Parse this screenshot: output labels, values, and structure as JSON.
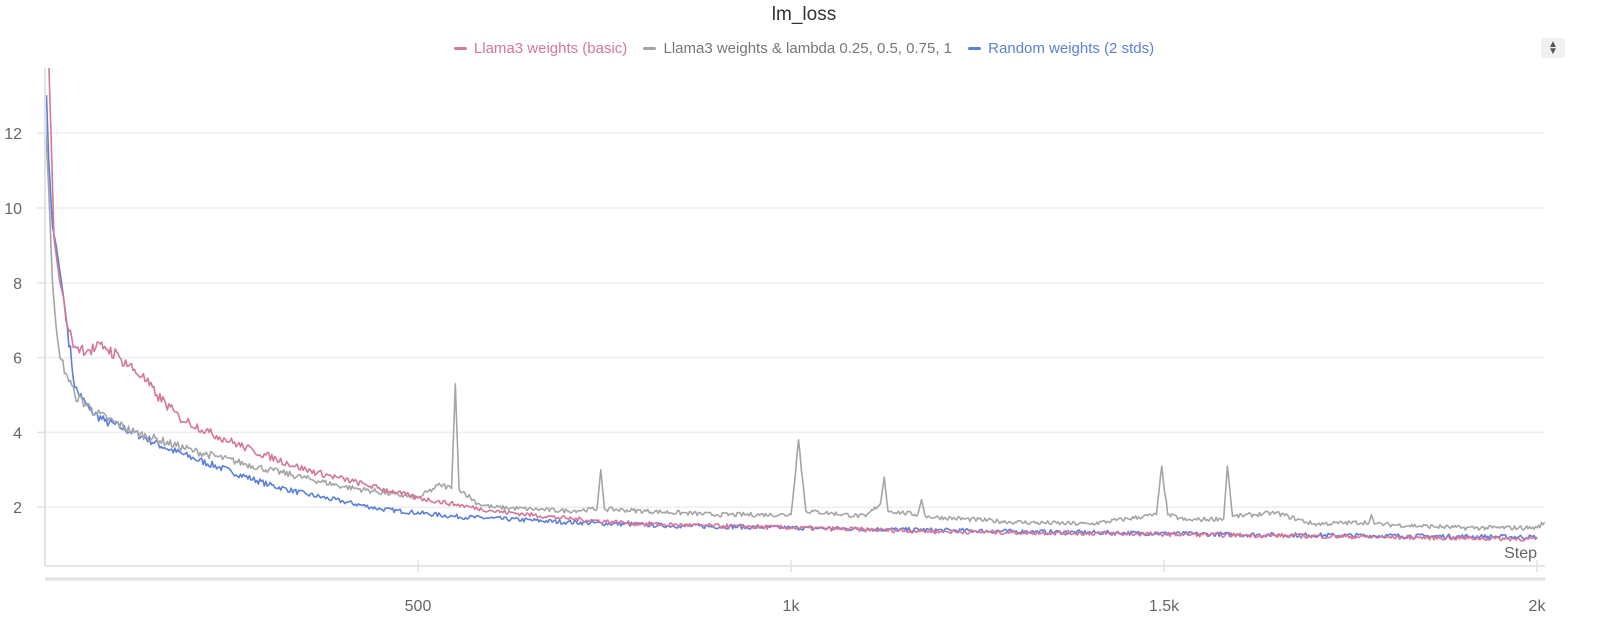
{
  "chart_data": {
    "type": "line",
    "title": "lm_loss",
    "xlabel": "Step",
    "ylabel": "",
    "xlim": [
      0,
      2010
    ],
    "ylim": [
      0.45,
      13.7
    ],
    "grid": true,
    "legend_position": "top-center",
    "x_ticks": [
      {
        "value": 500,
        "label": "500"
      },
      {
        "value": 1000,
        "label": "1k"
      },
      {
        "value": 1500,
        "label": "1.5k"
      },
      {
        "value": 2000,
        "label": "2k"
      }
    ],
    "y_ticks": [
      {
        "value": 2,
        "label": "2"
      },
      {
        "value": 4,
        "label": "4"
      },
      {
        "value": 6,
        "label": "6"
      },
      {
        "value": 8,
        "label": "8"
      },
      {
        "value": 10,
        "label": "10"
      },
      {
        "value": 12,
        "label": "12"
      }
    ],
    "series": [
      {
        "name": "Llama3 weights (basic)",
        "color": "#d6779a",
        "x": [
          5,
          8,
          12,
          16,
          20,
          25,
          28,
          32,
          40,
          60,
          80,
          100,
          130,
          150,
          180,
          220,
          280,
          350,
          430,
          500,
          600,
          700,
          800,
          1000,
          1200,
          1500,
          1800,
          2000
        ],
        "y": [
          14,
          12,
          9.2,
          8.6,
          8.0,
          7.6,
          7.0,
          6.7,
          6.3,
          6.2,
          6.3,
          6.0,
          5.5,
          5.0,
          4.4,
          4.0,
          3.5,
          3.0,
          2.6,
          2.25,
          1.9,
          1.7,
          1.55,
          1.45,
          1.35,
          1.28,
          1.2,
          1.15
        ]
      },
      {
        "name": "Llama3 weights & lambda 0.25, 0.5, 0.75, 1",
        "color": "#a3a5a8",
        "x": [
          0,
          5,
          10,
          15,
          20,
          30,
          40,
          70,
          120,
          200,
          300,
          400,
          500,
          530,
          545,
          550,
          555,
          580,
          600,
          700,
          740,
          745,
          750,
          900,
          1000,
          1010,
          1020,
          1100,
          1120,
          1125,
          1130,
          1170,
          1175,
          1180,
          1300,
          1400,
          1490,
          1497,
          1505,
          1530,
          1580,
          1585,
          1592,
          1650,
          1700,
          1775,
          1778,
          1782,
          1900,
          2000,
          2010
        ],
        "y": [
          12.5,
          10.5,
          8.0,
          6.8,
          6.0,
          5.5,
          5.0,
          4.5,
          4.0,
          3.5,
          3.0,
          2.55,
          2.25,
          2.6,
          2.5,
          5.3,
          2.5,
          2.1,
          2.0,
          1.9,
          1.95,
          3.0,
          1.95,
          1.8,
          1.8,
          3.8,
          1.9,
          1.75,
          2.1,
          2.8,
          1.9,
          1.8,
          2.2,
          1.75,
          1.6,
          1.55,
          1.8,
          3.1,
          1.8,
          1.65,
          1.7,
          3.1,
          1.75,
          1.85,
          1.55,
          1.6,
          1.8,
          1.55,
          1.45,
          1.45,
          1.6
        ]
      },
      {
        "name": "Random weights (2 stds)",
        "color": "#5b7fdb",
        "x": [
          0,
          2,
          5,
          10,
          15,
          20,
          25,
          30,
          40,
          50,
          60,
          80,
          100,
          130,
          160,
          200,
          250,
          300,
          350,
          400,
          450,
          550,
          700,
          850,
          1000,
          1300,
          1600,
          2000
        ],
        "y": [
          13,
          13,
          11.3,
          9.5,
          9.0,
          8.3,
          7.6,
          6.8,
          5.2,
          4.9,
          4.6,
          4.3,
          4.15,
          3.9,
          3.6,
          3.3,
          2.95,
          2.6,
          2.35,
          2.15,
          1.95,
          1.75,
          1.6,
          1.5,
          1.45,
          1.35,
          1.27,
          1.2
        ]
      }
    ]
  },
  "controls": {
    "legend_scroll_icon": "up-down-arrows-icon"
  }
}
